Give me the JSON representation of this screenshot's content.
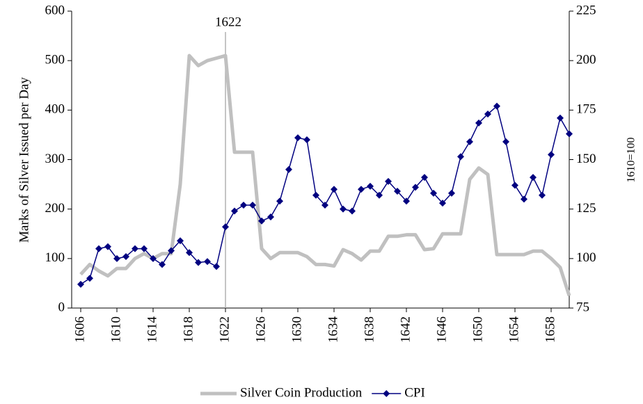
{
  "chart_data": {
    "type": "line",
    "ylabel": "Marks of Silver Issued per Day",
    "y2label": "1610=100",
    "x": [
      1606,
      1607,
      1608,
      1609,
      1610,
      1611,
      1612,
      1613,
      1614,
      1615,
      1616,
      1617,
      1618,
      1619,
      1620,
      1621,
      1622,
      1623,
      1624,
      1625,
      1626,
      1627,
      1628,
      1629,
      1630,
      1631,
      1632,
      1633,
      1634,
      1635,
      1636,
      1637,
      1638,
      1639,
      1640,
      1641,
      1642,
      1643,
      1644,
      1645,
      1646,
      1647,
      1648,
      1649,
      1650,
      1651,
      1652,
      1653,
      1654,
      1655,
      1656,
      1657,
      1658,
      1659,
      1660
    ],
    "xlim": [
      1605,
      1660
    ],
    "xticks": [
      1606,
      1610,
      1614,
      1618,
      1622,
      1626,
      1630,
      1634,
      1638,
      1642,
      1646,
      1650,
      1654,
      1658
    ],
    "ylim": [
      0,
      600
    ],
    "yticks": [
      0,
      100,
      200,
      300,
      400,
      500,
      600
    ],
    "y2lim": [
      75,
      225
    ],
    "y2ticks": [
      75,
      100,
      125,
      150,
      175,
      200,
      225
    ],
    "annotations": [
      {
        "text": "1622",
        "x": 1622
      }
    ],
    "series": [
      {
        "name": "Silver Coin Production",
        "color": "#c0c0c0",
        "axis": "y",
        "values": [
          68,
          88,
          75,
          65,
          80,
          80,
          100,
          110,
          100,
          110,
          110,
          250,
          510,
          490,
          500,
          505,
          510,
          315,
          315,
          315,
          120,
          100,
          112,
          112,
          112,
          104,
          88,
          88,
          85,
          118,
          110,
          97,
          115,
          115,
          145,
          145,
          148,
          148,
          118,
          120,
          150,
          150,
          150,
          260,
          283,
          270,
          108,
          108,
          108,
          108,
          115,
          115,
          100,
          82,
          25
        ]
      },
      {
        "name": "CPI",
        "color": "#000080",
        "axis": "y2",
        "marker": "diamond",
        "values": [
          87,
          90,
          105,
          106,
          100,
          101,
          105,
          105,
          100,
          97,
          104,
          109,
          103,
          98,
          98.5,
          96,
          116,
          124,
          127,
          127,
          119,
          121,
          129,
          145,
          161,
          160,
          132,
          127,
          135,
          125,
          124,
          135,
          136.5,
          132,
          139,
          134,
          129,
          136,
          141,
          133,
          128,
          133,
          151.5,
          159,
          168.5,
          173,
          177,
          159,
          137,
          130,
          141,
          132,
          152.5,
          171,
          163
        ]
      }
    ]
  }
}
